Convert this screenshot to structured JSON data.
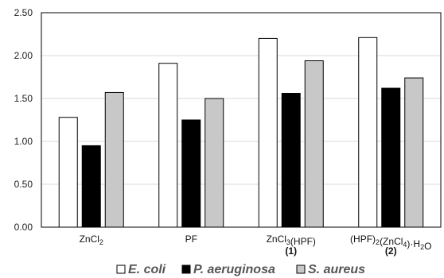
{
  "chart_data": {
    "type": "bar",
    "title": "",
    "xlabel": "",
    "ylabel": "",
    "ylim": [
      0,
      2.5
    ],
    "yticks": [
      "0.00",
      "0.50",
      "1.00",
      "1.50",
      "2.00",
      "2.50"
    ],
    "grid": true,
    "legend_position": "bottom",
    "categories": [
      {
        "parts": [
          [
            "ZnCl",
            "n"
          ],
          [
            "2",
            "sub"
          ]
        ],
        "line2": ""
      },
      {
        "parts": [
          [
            "PF",
            "n"
          ]
        ],
        "line2": ""
      },
      {
        "parts": [
          [
            "ZnCl",
            "n"
          ],
          [
            "3",
            "sub"
          ],
          [
            "(HPF)",
            "n"
          ]
        ],
        "line2": "(1)"
      },
      {
        "parts": [
          [
            "(HPF)",
            "n"
          ],
          [
            "2",
            "sub"
          ],
          [
            "(ZnCl",
            "n"
          ],
          [
            "4",
            "sub"
          ],
          [
            ")·H",
            "n"
          ],
          [
            "2",
            "sub"
          ],
          [
            "O",
            "n"
          ]
        ],
        "line2": "(2)"
      }
    ],
    "series": [
      {
        "name": "E. coli",
        "color": "#ffffff",
        "values": [
          1.28,
          1.91,
          2.2,
          2.21
        ]
      },
      {
        "name": "P. aeruginosa",
        "color": "#000000",
        "values": [
          0.95,
          1.25,
          1.56,
          1.62
        ]
      },
      {
        "name": "S. aureus",
        "color": "#c8c8c8",
        "values": [
          1.57,
          1.5,
          1.94,
          1.74
        ]
      }
    ]
  }
}
